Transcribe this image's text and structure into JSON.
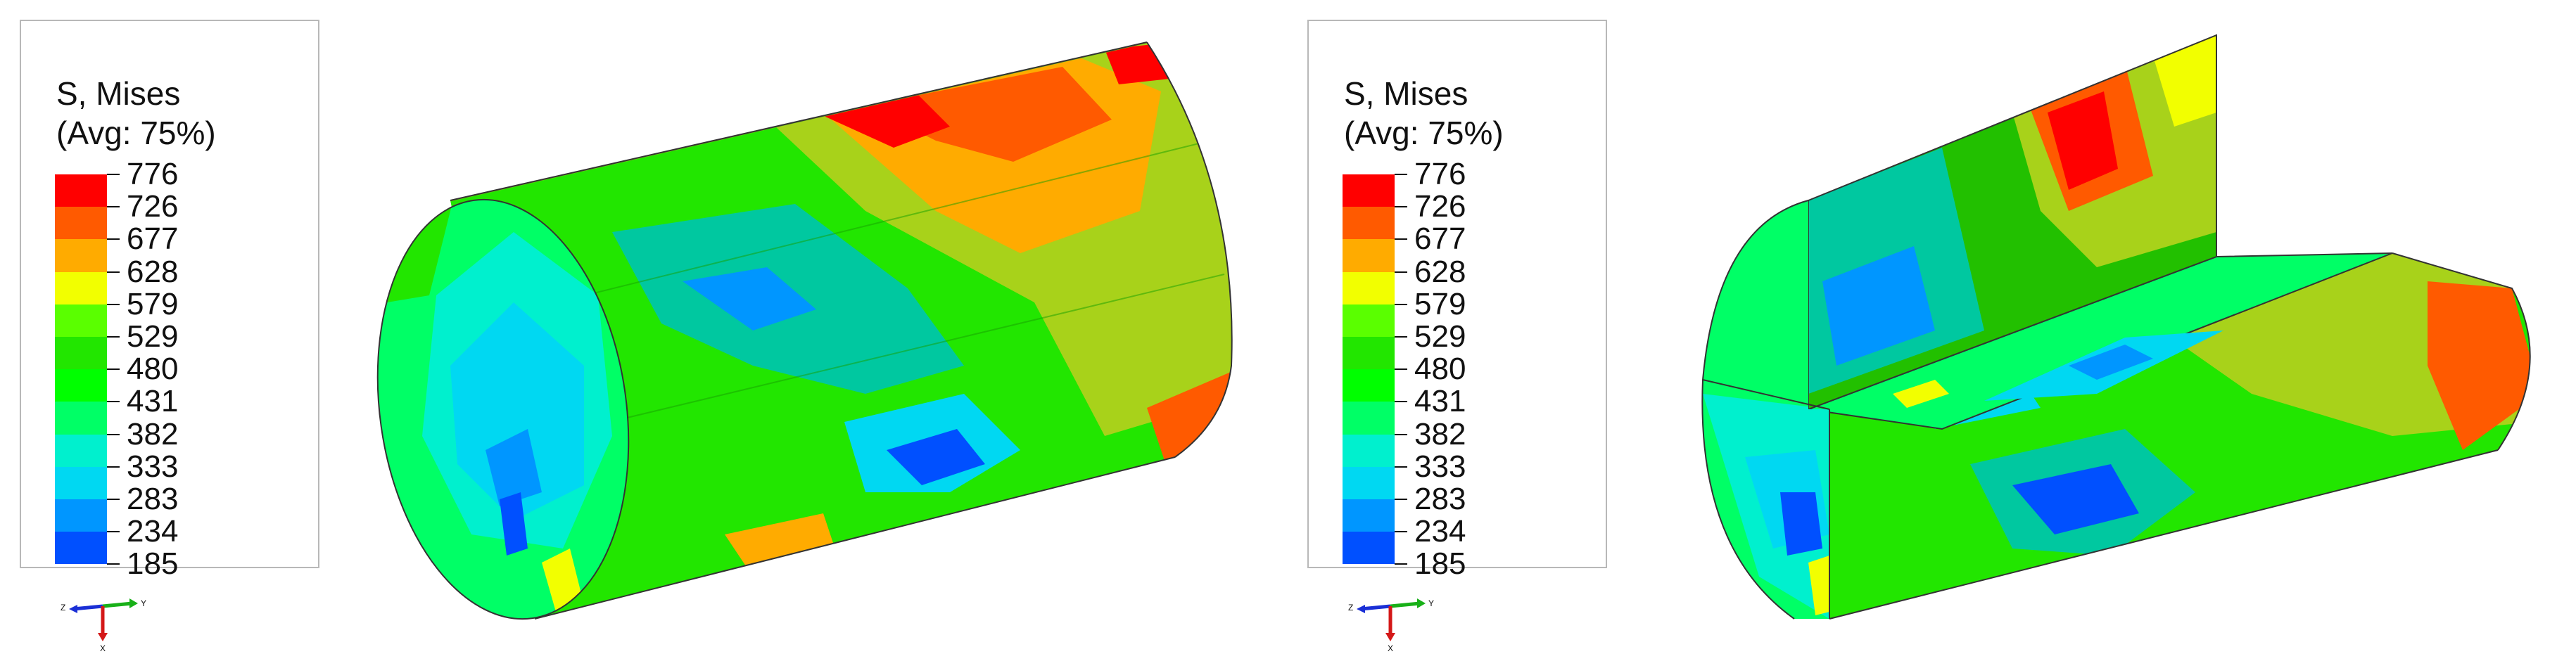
{
  "panels": [
    {
      "id": "left",
      "legend": {
        "title_line1": "S, Mises",
        "title_line2": "(Avg: 75%)",
        "values": [
          "776",
          "726",
          "677",
          "628",
          "579",
          "529",
          "480",
          "431",
          "382",
          "333",
          "283",
          "234",
          "185"
        ],
        "colors": [
          "#ff0000",
          "#ff5a00",
          "#ffab00",
          "#f2ff00",
          "#5aff00",
          "#22e600",
          "#00ff00",
          "#00ff66",
          "#00f0ce",
          "#00d8f2",
          "#0096ff",
          "#0050ff",
          "#0000ff"
        ]
      },
      "triad": {
        "x_label": "Z",
        "y_label": "Y",
        "z_label": "X"
      }
    },
    {
      "id": "right",
      "legend": {
        "title_line1": "S, Mises",
        "title_line2": "(Avg: 75%)",
        "values": [
          "776",
          "726",
          "677",
          "628",
          "579",
          "529",
          "480",
          "431",
          "382",
          "333",
          "283",
          "234",
          "185"
        ],
        "colors": [
          "#ff0000",
          "#ff5a00",
          "#ffab00",
          "#f2ff00",
          "#5aff00",
          "#22e600",
          "#00ff00",
          "#00ff66",
          "#00f0ce",
          "#00d8f2",
          "#0096ff",
          "#0050ff",
          "#0000ff"
        ]
      },
      "triad": {
        "x_label": "Z",
        "y_label": "Y",
        "z_label": "X"
      }
    }
  ]
}
